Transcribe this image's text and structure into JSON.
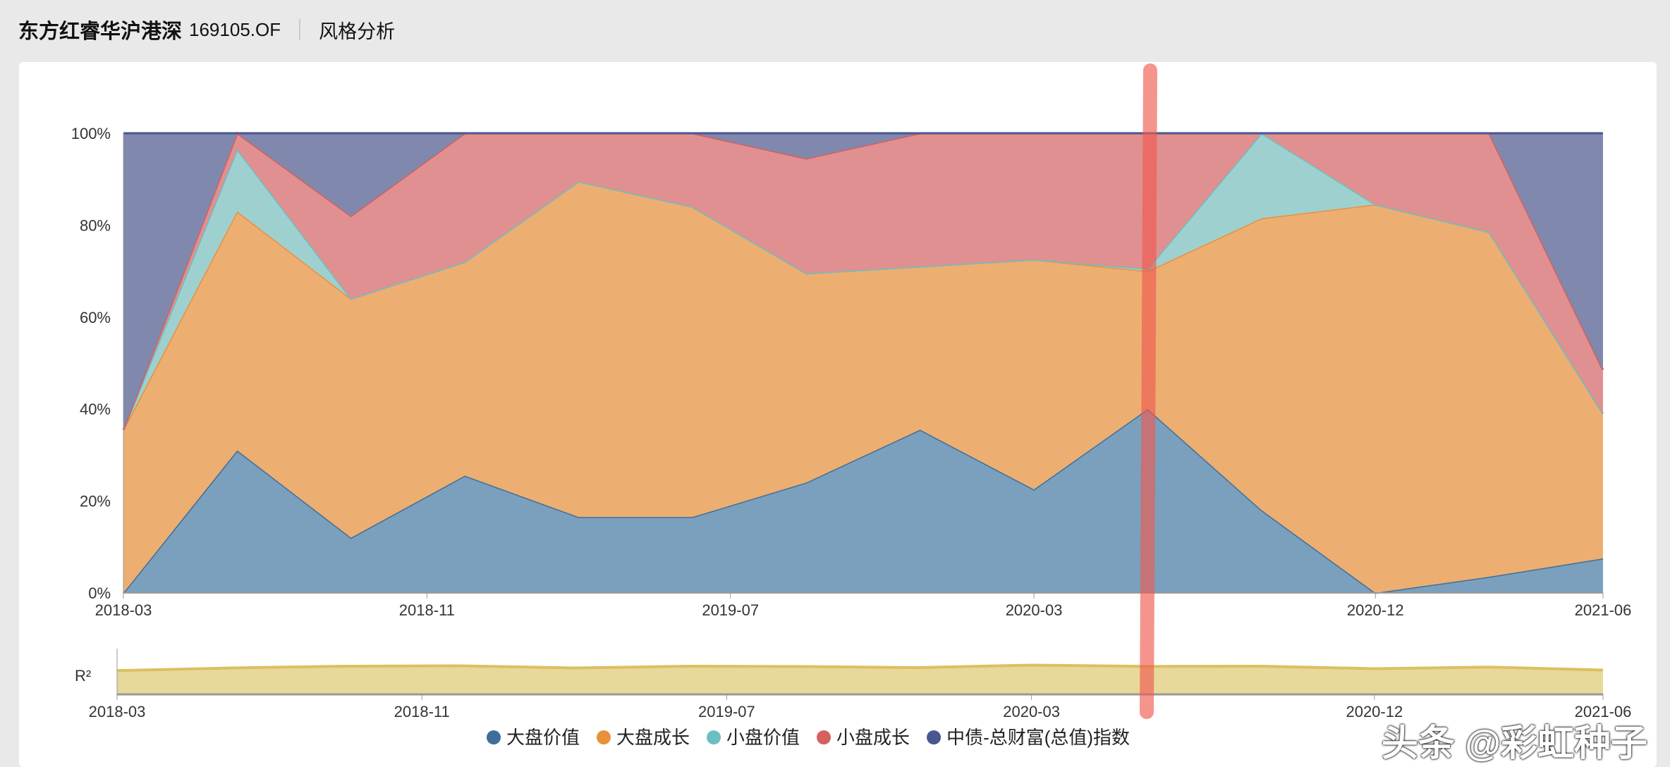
{
  "header": {
    "title": "东方红睿华沪港深",
    "code": "169105.OF",
    "section": "风格分析"
  },
  "watermark": "头条 @彩虹种子",
  "chart_data": [
    {
      "type": "area",
      "stacked": true,
      "title": "风格分析",
      "x": [
        "2018-03",
        "2018-06",
        "2018-09",
        "2018-12",
        "2019-03",
        "2019-06",
        "2019-09",
        "2019-12",
        "2020-03",
        "2020-06",
        "2020-09",
        "2020-12",
        "2021-03",
        "2021-06"
      ],
      "xticks": [
        "2018-03",
        "2018-11",
        "2019-07",
        "2020-03",
        "2020-12",
        "2021-06"
      ],
      "yticks": [
        "0%",
        "20%",
        "40%",
        "60%",
        "80%",
        "100%"
      ],
      "ylim": [
        0,
        100
      ],
      "grid": true,
      "series": [
        {
          "name": "大盘价值",
          "color": "#3e6f9a",
          "fill": "#7aa0bd",
          "values": [
            0,
            31,
            12,
            25.5,
            16.5,
            16.5,
            24,
            35.5,
            22.5,
            40,
            18,
            0,
            3.5,
            7.5
          ]
        },
        {
          "name": "大盘成长",
          "color": "#e8913a",
          "fill": "#edae72",
          "values": [
            35.5,
            52,
            52,
            46.5,
            73,
            67.5,
            45.5,
            35.5,
            50,
            30,
            63.5,
            84.5,
            75,
            31.5
          ]
        },
        {
          "name": "小盘价值",
          "color": "#6cbfc0",
          "fill": "#9fd0d0",
          "values": [
            0,
            13.5,
            0,
            0,
            0,
            0,
            0,
            0,
            0,
            0.5,
            18.5,
            0,
            0,
            0
          ]
        },
        {
          "name": "小盘成长",
          "color": "#d46060",
          "fill": "#e09090",
          "values": [
            0,
            3.5,
            18,
            28,
            10.5,
            16,
            25,
            29,
            27.5,
            29.5,
            0,
            15.5,
            21.5,
            9.5
          ]
        },
        {
          "name": "中债-总财富(总值)指数",
          "color": "#4a5690",
          "fill": "#8088ad",
          "values": [
            64.5,
            0,
            18,
            0,
            0,
            0,
            5.5,
            0,
            0,
            0,
            0,
            0,
            0,
            51.5
          ]
        }
      ],
      "legend": "bottom-center"
    },
    {
      "type": "area",
      "ylabel": "R²",
      "x": [
        "2018-03",
        "2018-06",
        "2018-09",
        "2018-12",
        "2019-03",
        "2019-06",
        "2019-09",
        "2019-12",
        "2020-03",
        "2020-06",
        "2020-09",
        "2020-12",
        "2021-03",
        "2021-06"
      ],
      "xticks": [
        "2018-03",
        "2018-11",
        "2019-07",
        "2020-03",
        "2020-12",
        "2021-06"
      ],
      "ylim": [
        0,
        1
      ],
      "color": "#dcc060",
      "fill": "#e8d89a",
      "values": [
        0.55,
        0.7,
        0.8,
        0.82,
        0.7,
        0.8,
        0.78,
        0.72,
        0.86,
        0.79,
        0.8,
        0.66,
        0.75,
        0.58
      ]
    }
  ]
}
